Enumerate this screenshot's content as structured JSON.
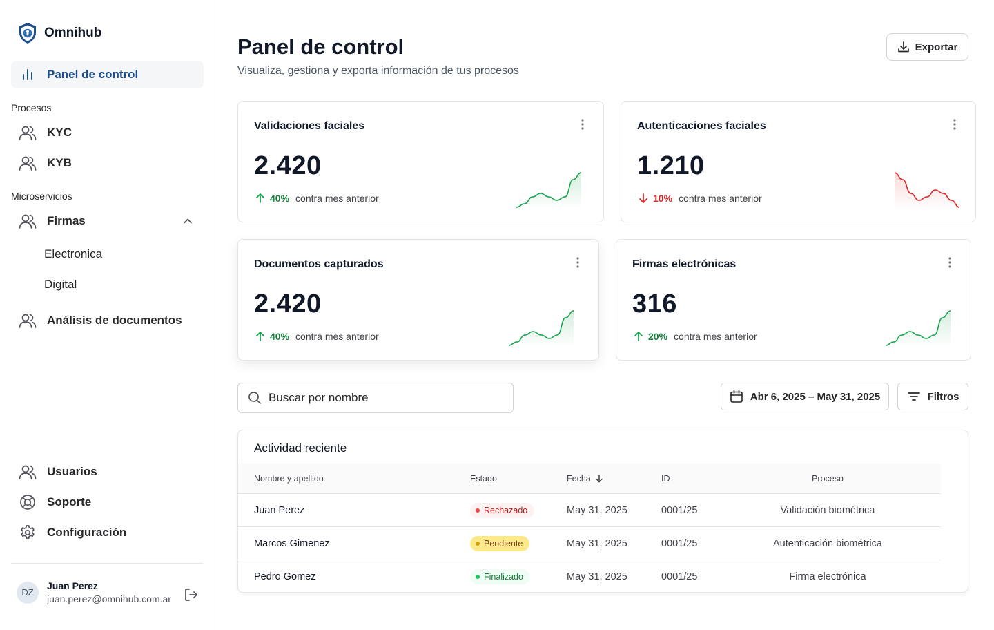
{
  "brand": {
    "name": "Omnihub"
  },
  "sidebar": {
    "active_item": "Panel de control",
    "sections": {
      "procesos": "Procesos",
      "microservicios": "Microservicios"
    },
    "items": {
      "kyc": "KYC",
      "kyb": "KYB",
      "firmas": "Firmas",
      "firmas_electronica": "Electronica",
      "firmas_digital": "Digital",
      "analisis": "Análisis de documentos",
      "usuarios": "Usuarios",
      "soporte": "Soporte",
      "configuracion": "Configuración"
    },
    "user": {
      "initials": "DZ",
      "name": "Juan Perez",
      "email": "juan.perez@omnihub.com.ar"
    }
  },
  "header": {
    "title": "Panel de control",
    "subtitle": "Visualiza, gestiona y exporta información de tus procesos",
    "export_label": "Exportar"
  },
  "cards": [
    {
      "title": "Validaciones faciales",
      "value": "2.420",
      "change": "40%",
      "direction": "up",
      "comparison": "contra mes anterior",
      "trend": [
        2,
        3,
        5,
        6,
        5,
        4,
        5,
        10,
        12
      ]
    },
    {
      "title": "Autenticaciones faciales",
      "value": "1.210",
      "change": "10%",
      "direction": "down",
      "comparison": "contra mes anterior",
      "trend": [
        11,
        9,
        5,
        3,
        4,
        6,
        5,
        3,
        1
      ]
    },
    {
      "title": "Documentos capturados",
      "value": "2.420",
      "change": "40%",
      "direction": "up",
      "comparison": "contra mes anterior",
      "trend": [
        2,
        3,
        5,
        6,
        5,
        4,
        5,
        10,
        12
      ]
    },
    {
      "title": "Firmas electrónicas",
      "value": "316",
      "change": "20%",
      "direction": "up",
      "comparison": "contra mes anterior",
      "trend": [
        2,
        3,
        5,
        6,
        5,
        4,
        5,
        10,
        12
      ]
    }
  ],
  "colors": {
    "up": "#16a34a",
    "down": "#dc2626",
    "brand": "#1e4e8c"
  },
  "search": {
    "placeholder": "Buscar por nombre"
  },
  "date_range": {
    "label": "Abr 6, 2025 – May 31, 2025"
  },
  "filters": {
    "label": "Filtros"
  },
  "table": {
    "title": "Actividad reciente",
    "columns": {
      "name": "Nombre y apellido",
      "status": "Estado",
      "date": "Fecha",
      "id": "ID",
      "process": "Proceso"
    },
    "sort_column": "date",
    "rows": [
      {
        "name": "Juan Perez",
        "status": "Rechazado",
        "status_tone": "red",
        "date": "May 31, 2025",
        "id": "0001/25",
        "process": "Validación biométrica"
      },
      {
        "name": "Marcos Gimenez",
        "status": "Pendiente",
        "status_tone": "yellow",
        "date": "May 31, 2025",
        "id": "0001/25",
        "process": "Autenticación biométrica"
      },
      {
        "name": "Pedro Gomez",
        "status": "Finalizado",
        "status_tone": "green",
        "date": "May 31, 2025",
        "id": "0001/25",
        "process": "Firma electrónica"
      }
    ]
  }
}
